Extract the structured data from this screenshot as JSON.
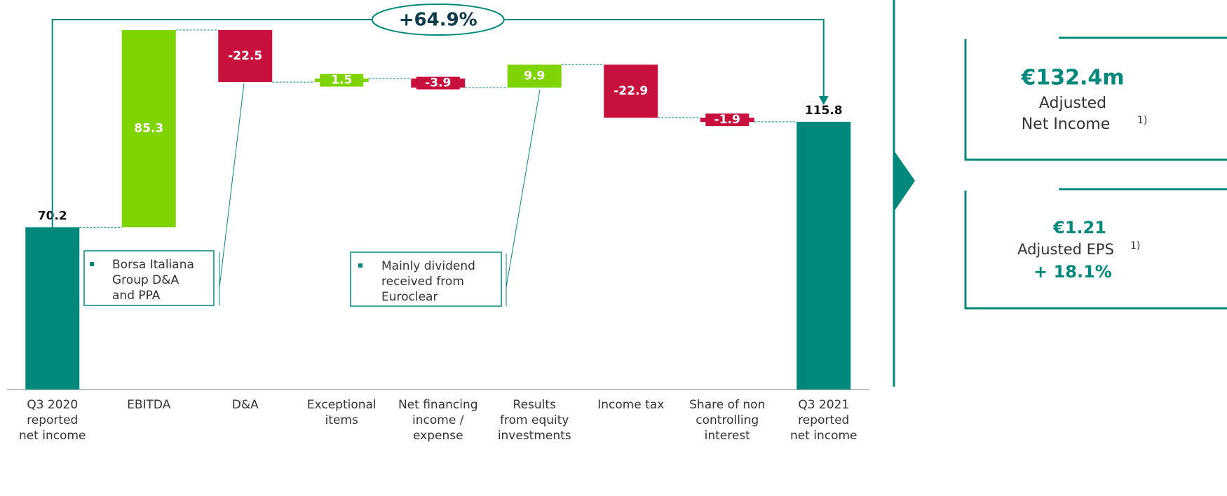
{
  "chart_data": {
    "type": "waterfall",
    "categories": [
      [
        "Q3 2020",
        "reported",
        "net income"
      ],
      [
        "EBITDA"
      ],
      [
        "D&A"
      ],
      [
        "Exceptional",
        "items"
      ],
      [
        "Net financing",
        "income /",
        "expense"
      ],
      [
        "Results",
        "from equity",
        "investments"
      ],
      [
        "Income tax"
      ],
      [
        "Share of non",
        "controlling",
        "interest"
      ],
      [
        "Q3 2021",
        "reported",
        "net income"
      ]
    ],
    "values": [
      70.2,
      85.3,
      -22.5,
      1.5,
      -3.9,
      9.9,
      -22.9,
      -1.9,
      115.8
    ],
    "colors": [
      "#00897b",
      "#7ed300",
      "#c8103f",
      "#7ed300",
      "#c8103f",
      "#7ed300",
      "#c8103f",
      "#c8103f",
      "#00897b"
    ],
    "ylim": [
      0,
      160
    ],
    "annotation": "+64.9%",
    "notes": [
      {
        "lines": [
          "Borsa Italiana",
          "Group D&A",
          "and PPA"
        ]
      },
      {
        "lines": [
          "Mainly dividend",
          "received from",
          "Euroclear"
        ]
      }
    ]
  },
  "side_panel": {
    "boxes": [
      {
        "headline": "€132.4m",
        "lines": [
          "Adjusted",
          "Net Income"
        ],
        "footnote": "1)"
      },
      {
        "headline": "€1.21",
        "lines": [
          "Adjusted EPS"
        ],
        "footnote": "1)",
        "change": "+ 18.1%"
      }
    ]
  }
}
